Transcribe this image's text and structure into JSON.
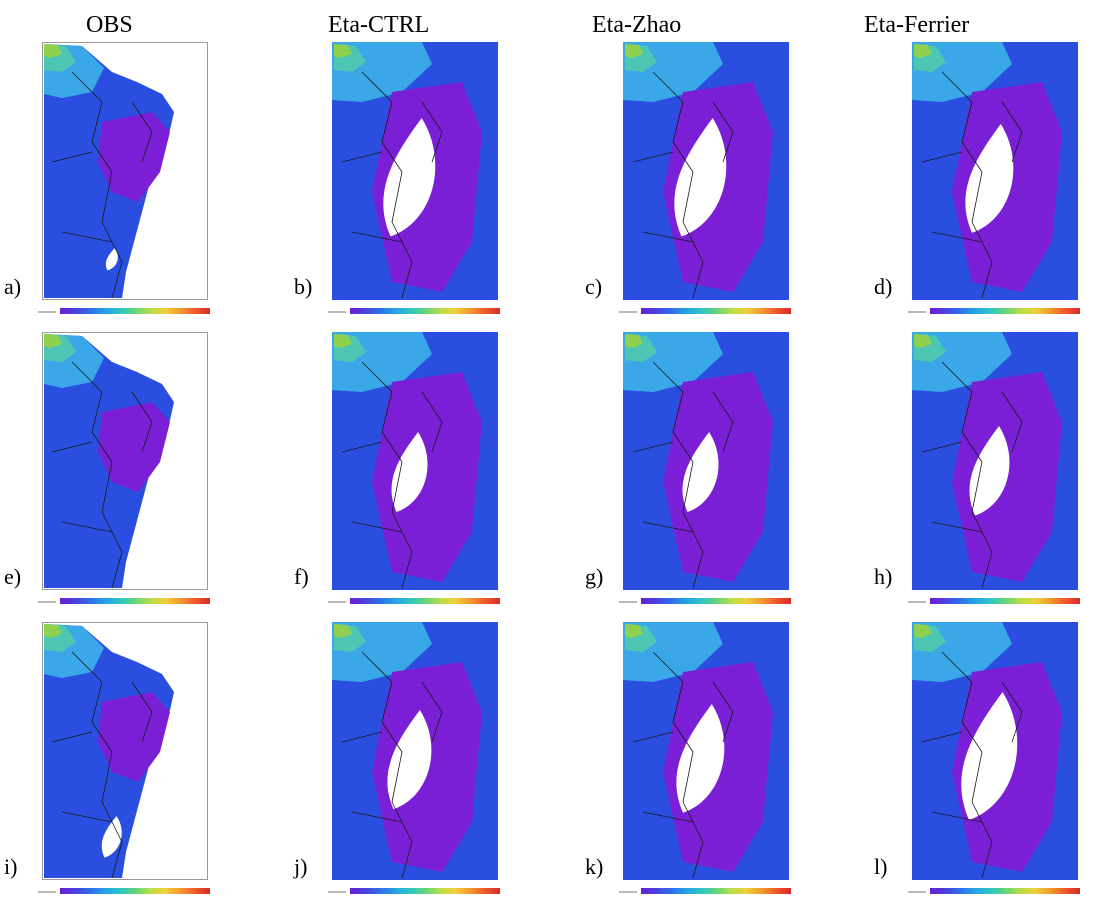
{
  "columns": [
    "OBS",
    "Eta-CTRL",
    "Eta-Zhao",
    "Eta-Ferrier"
  ],
  "panels": [
    {
      "label": "a)",
      "kind": "obs",
      "dry": 0.05
    },
    {
      "label": "b)",
      "kind": "model",
      "dry": 0.55
    },
    {
      "label": "c)",
      "kind": "model",
      "dry": 0.55
    },
    {
      "label": "d)",
      "kind": "model",
      "dry": 0.5
    },
    {
      "label": "e)",
      "kind": "obs",
      "dry": 0.0
    },
    {
      "label": "f)",
      "kind": "model",
      "dry": 0.35
    },
    {
      "label": "g)",
      "kind": "model",
      "dry": 0.35
    },
    {
      "label": "h)",
      "kind": "model",
      "dry": 0.4
    },
    {
      "label": "i)",
      "kind": "obs",
      "dry": 0.15
    },
    {
      "label": "j)",
      "kind": "model",
      "dry": 0.45
    },
    {
      "label": "k)",
      "kind": "model",
      "dry": 0.5
    },
    {
      "label": "l)",
      "kind": "model",
      "dry": 0.6
    }
  ],
  "palette": {
    "dry": "#ffffff",
    "low": "#7a1fd6",
    "mid": "#2a4fe0",
    "high": "#3aa8e8",
    "higher": "#4cc7b4",
    "top": "#8fd14f",
    "peak": "#d8e23a",
    "border": "#1a1a1a"
  },
  "colorbar": [
    "#6a1fd0",
    "#4b3fe0",
    "#2f6ee8",
    "#25a3e6",
    "#2cc6c4",
    "#63d47a",
    "#b6dd4a",
    "#f0d13a",
    "#f39a32",
    "#ef5a2a",
    "#d8292a"
  ]
}
